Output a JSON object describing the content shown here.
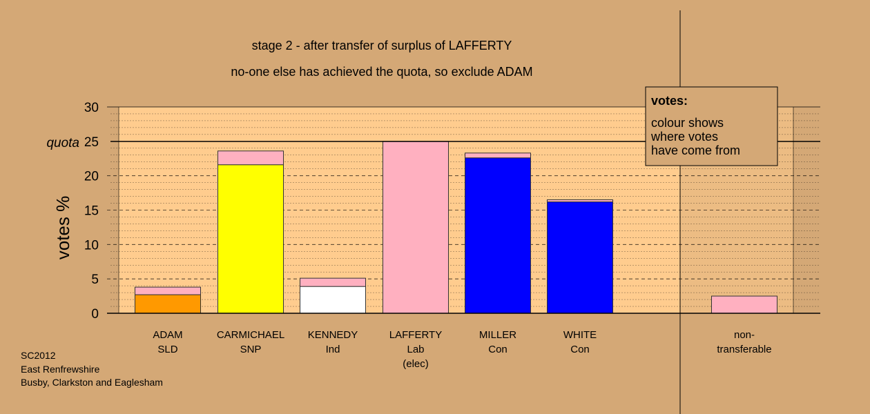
{
  "chart_data": {
    "type": "bar",
    "stacked": true,
    "title": "stage 2 - after transfer of surplus of LAFFERTY",
    "subtitle": "no-one else has achieved the quota, so exclude ADAM",
    "ylabel": "votes %",
    "ylim": [
      0,
      30
    ],
    "yticks": [
      0,
      5,
      10,
      15,
      20,
      25,
      30
    ],
    "quota": 25,
    "quota_label": "quota",
    "grid": true,
    "categories": [
      {
        "lines": [
          "ADAM",
          "SLD"
        ]
      },
      {
        "lines": [
          "CARMICHAEL",
          "SNP"
        ]
      },
      {
        "lines": [
          "KENNEDY",
          "Ind"
        ]
      },
      {
        "lines": [
          "LAFFERTY",
          "Lab",
          "(elec)"
        ]
      },
      {
        "lines": [
          "MILLER",
          "Con"
        ]
      },
      {
        "lines": [
          "WHITE",
          "Con"
        ]
      },
      {
        "lines": [
          "non-",
          "transferable"
        ]
      }
    ],
    "series": [
      {
        "key": "own",
        "values": [
          2.7,
          21.6,
          3.9,
          0,
          22.6,
          16.2,
          0
        ],
        "colors": [
          "#ff9900",
          "#ffff00",
          "#ffffff",
          "#ffb0c0",
          "#0000ff",
          "#0000ff",
          "#ffb0c0"
        ]
      },
      {
        "key": "transfer_from_lafferty",
        "color": "#ffb0c0",
        "values": [
          1.1,
          2.0,
          1.2,
          25.0,
          0.7,
          0.3,
          2.5
        ]
      }
    ],
    "legend": {
      "title": "votes:",
      "lines": [
        "colour shows",
        "where votes",
        "have come from"
      ],
      "placement": "top-right"
    },
    "colors": {
      "background": "#d4a876",
      "plot_background": "#ffcc8e",
      "transfer_pink": "#ffb0c0"
    }
  },
  "footer": {
    "lines": [
      "SC2012",
      "East Renfrewshire",
      "Busby, Clarkston and Eaglesham"
    ]
  }
}
